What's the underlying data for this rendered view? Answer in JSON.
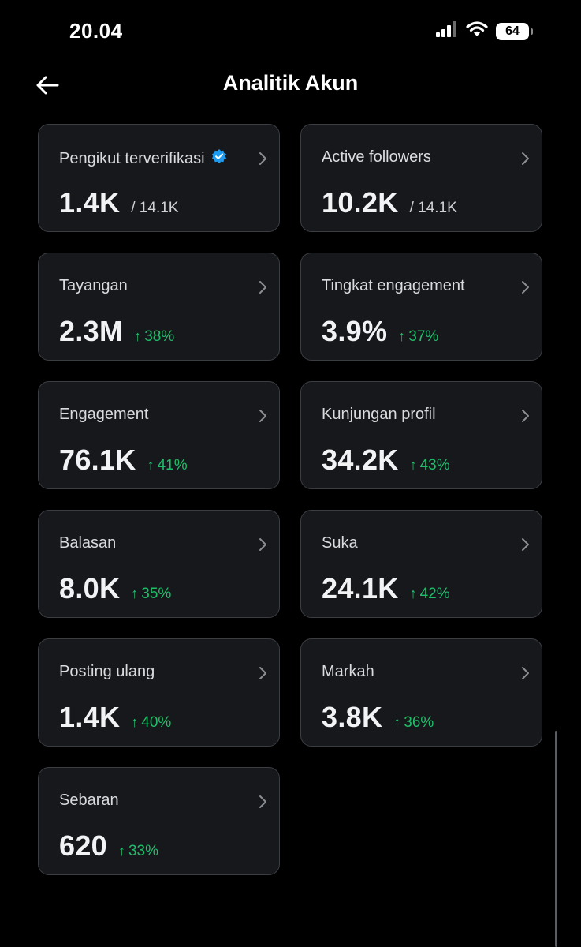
{
  "status_bar": {
    "time": "20.04",
    "battery": "64"
  },
  "header": {
    "title": "Analitik Akun"
  },
  "colors": {
    "accent_green": "#1fbf6a",
    "verified_blue": "#1d9bf0",
    "card_border": "#3a3d42"
  },
  "cards": [
    {
      "label": "Pengikut terverifikasi",
      "value": "1.4K",
      "total": "/ 14.1K",
      "verified": true
    },
    {
      "label": "Active followers",
      "value": "10.2K",
      "total": "/ 14.1K"
    },
    {
      "label": "Tayangan",
      "value": "2.3M",
      "change": "38%"
    },
    {
      "label": "Tingkat engagement",
      "value": "3.9%",
      "change": "37%"
    },
    {
      "label": "Engagement",
      "value": "76.1K",
      "change": "41%"
    },
    {
      "label": "Kunjungan profil",
      "value": "34.2K",
      "change": "43%"
    },
    {
      "label": "Balasan",
      "value": "8.0K",
      "change": "35%"
    },
    {
      "label": "Suka",
      "value": "24.1K",
      "change": "42%"
    },
    {
      "label": "Posting ulang",
      "value": "1.4K",
      "change": "40%"
    },
    {
      "label": "Markah",
      "value": "3.8K",
      "change": "36%"
    },
    {
      "label": "Sebaran",
      "value": "620",
      "change": "33%"
    }
  ]
}
